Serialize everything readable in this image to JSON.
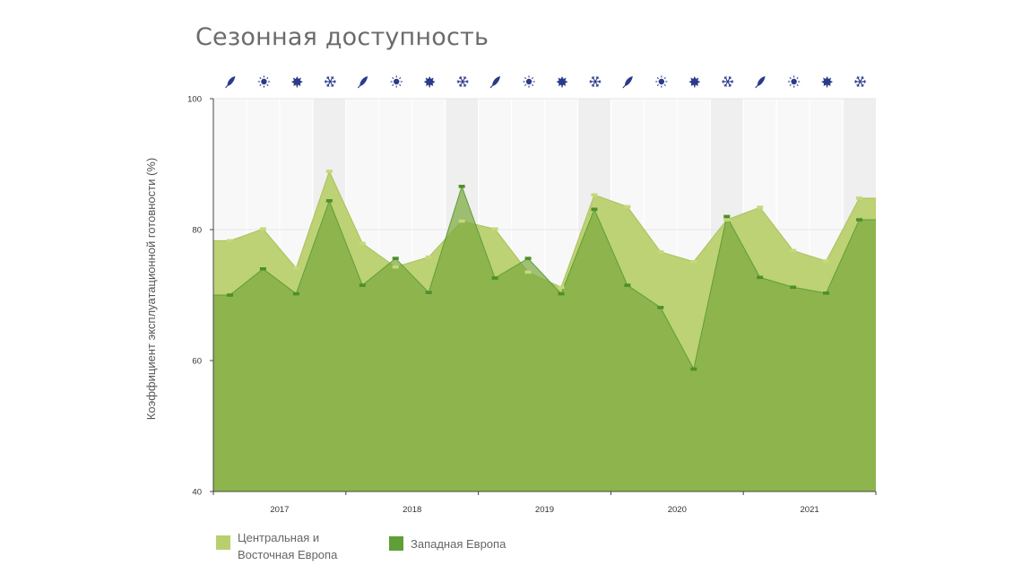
{
  "title": "Сезонная доступность",
  "chart_data": {
    "type": "area",
    "ylabel": "Коэффициент эксплуатационной готовности (%)",
    "ylim": [
      40,
      100
    ],
    "yticks": [
      40,
      60,
      80,
      100
    ],
    "years": [
      "2017",
      "2018",
      "2019",
      "2020",
      "2021"
    ],
    "seasons": [
      "spring",
      "summer",
      "autumn",
      "winter"
    ],
    "season_icons": [
      "leaf-icon",
      "sun-icon",
      "maple-leaf-icon",
      "snowflake-icon"
    ],
    "grid": true,
    "legend_position": "bottom-left",
    "series": [
      {
        "name": "Центральная и Восточная Европа",
        "name_lines": [
          "Центральная и",
          "Восточная Европа"
        ],
        "color": "#b9cf6e",
        "values": [
          78.3,
          80.1,
          74.1,
          88.9,
          77.9,
          74.3,
          75.8,
          81.3,
          80.1,
          73.5,
          71.2,
          85.3,
          83.5,
          76.6,
          75.1,
          81.5,
          83.4,
          76.8,
          75.2,
          84.8
        ]
      },
      {
        "name": "Западная Европа",
        "color": "#5e9f37",
        "values": [
          70.0,
          74.0,
          70.2,
          84.4,
          71.5,
          75.6,
          70.4,
          86.6,
          72.6,
          75.6,
          70.2,
          83.1,
          71.5,
          68.1,
          58.7,
          82.0,
          72.7,
          71.2,
          70.3,
          81.5
        ]
      }
    ]
  },
  "legend": {
    "items": [
      {
        "label_line1": "Центральная и",
        "label_line2": "Восточная Европа",
        "color": "#b9cf6e"
      },
      {
        "label": "Западная Европа",
        "color": "#5e9f37"
      }
    ]
  }
}
